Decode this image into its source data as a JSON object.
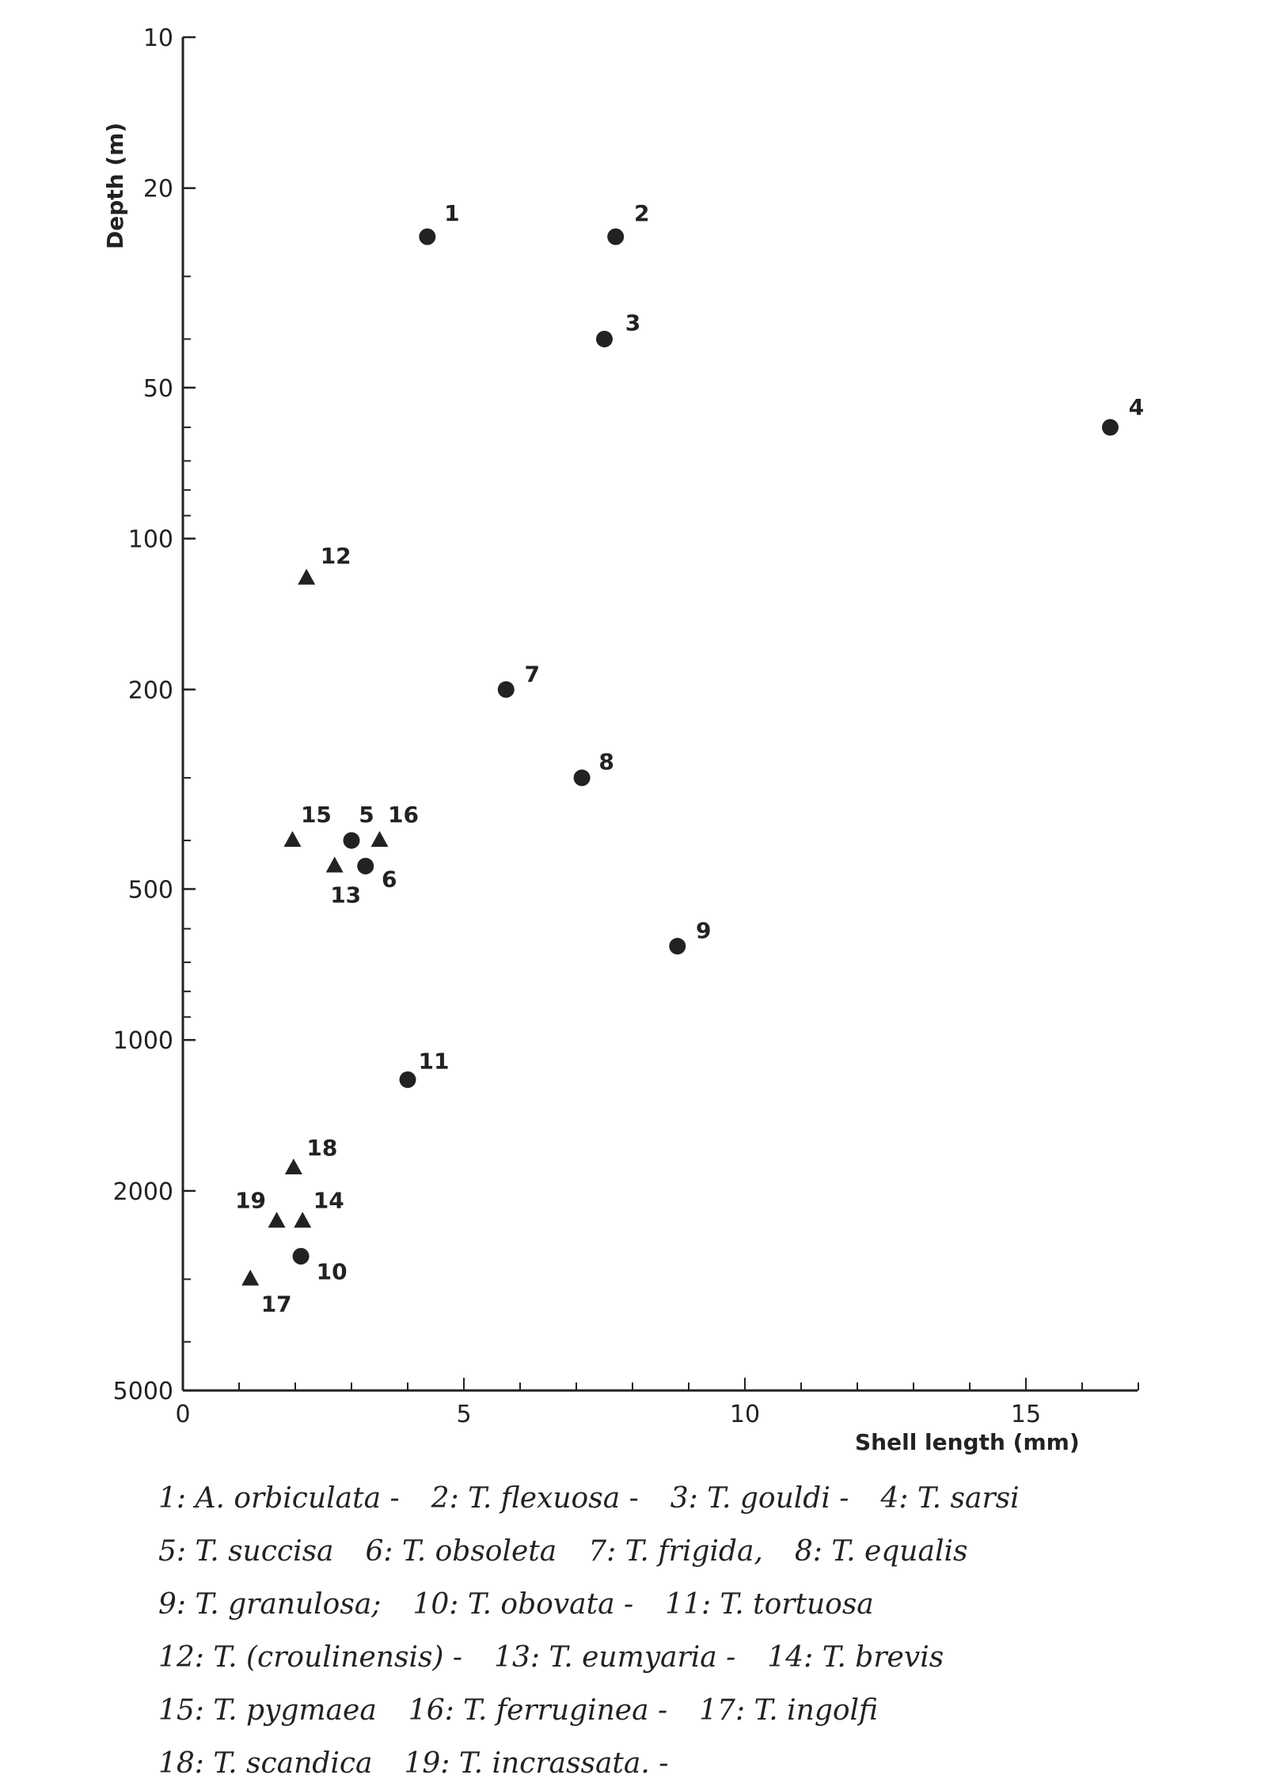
{
  "chart_data": {
    "type": "scatter",
    "xlabel": "Shell length  (mm)",
    "ylabel": "Depth  (m)",
    "xlim": [
      0,
      17
    ],
    "ylim": [
      10,
      5000
    ],
    "yscale": "log",
    "y_inverted": true,
    "x_ticks": [
      0,
      5,
      10,
      15
    ],
    "y_ticks": [
      10,
      20,
      50,
      100,
      200,
      500,
      1000,
      2000,
      5000
    ],
    "grid": false,
    "markers": {
      "circle": "circle",
      "triangle": "triangle"
    },
    "points": [
      {
        "label": "1",
        "x": 4.35,
        "y": 25,
        "marker": "circle"
      },
      {
        "label": "2",
        "x": 7.7,
        "y": 25,
        "marker": "circle"
      },
      {
        "label": "3",
        "x": 7.5,
        "y": 40,
        "marker": "circle"
      },
      {
        "label": "4",
        "x": 16.5,
        "y": 60,
        "marker": "circle"
      },
      {
        "label": "12",
        "x": 2.2,
        "y": 120,
        "marker": "triangle"
      },
      {
        "label": "7",
        "x": 5.75,
        "y": 200,
        "marker": "circle"
      },
      {
        "label": "8",
        "x": 7.1,
        "y": 300,
        "marker": "circle"
      },
      {
        "label": "15",
        "x": 1.95,
        "y": 400,
        "marker": "triangle"
      },
      {
        "label": "5",
        "x": 3.0,
        "y": 400,
        "marker": "circle"
      },
      {
        "label": "16",
        "x": 3.5,
        "y": 400,
        "marker": "triangle"
      },
      {
        "label": "13",
        "x": 2.7,
        "y": 450,
        "marker": "triangle"
      },
      {
        "label": "6",
        "x": 3.25,
        "y": 450,
        "marker": "circle"
      },
      {
        "label": "9",
        "x": 8.8,
        "y": 650,
        "marker": "circle"
      },
      {
        "label": "11",
        "x": 4.0,
        "y": 1200,
        "marker": "circle"
      },
      {
        "label": "18",
        "x": 1.97,
        "y": 1800,
        "marker": "triangle"
      },
      {
        "label": "19",
        "x": 1.67,
        "y": 2300,
        "marker": "triangle"
      },
      {
        "label": "14",
        "x": 2.13,
        "y": 2300,
        "marker": "triangle"
      },
      {
        "label": "10",
        "x": 2.1,
        "y": 2700,
        "marker": "circle"
      },
      {
        "label": "17",
        "x": 1.2,
        "y": 3000,
        "marker": "triangle"
      }
    ],
    "color": "#222222"
  },
  "legend_lines": [
    [
      "1: A. orbiculata -",
      "2: T. flexuosa -",
      "3: T. gouldi -",
      "4: T. sarsi"
    ],
    [
      "5: T. succisa",
      "6: T. obsoleta",
      "7: T. frigida,",
      "8: T. equalis"
    ],
    [
      "9: T. granulosa;",
      "10: T. obovata -",
      "11: T. tortuosa"
    ],
    [
      "12: T. (croulinensis) -",
      "13: T. eumyaria -",
      "14: T. brevis"
    ],
    [
      "15: T. pygmaea",
      "16: T. ferruginea -",
      "17: T. ingolfi"
    ],
    [
      "18: T. scandica",
      "19: T. incrassata. -"
    ]
  ]
}
